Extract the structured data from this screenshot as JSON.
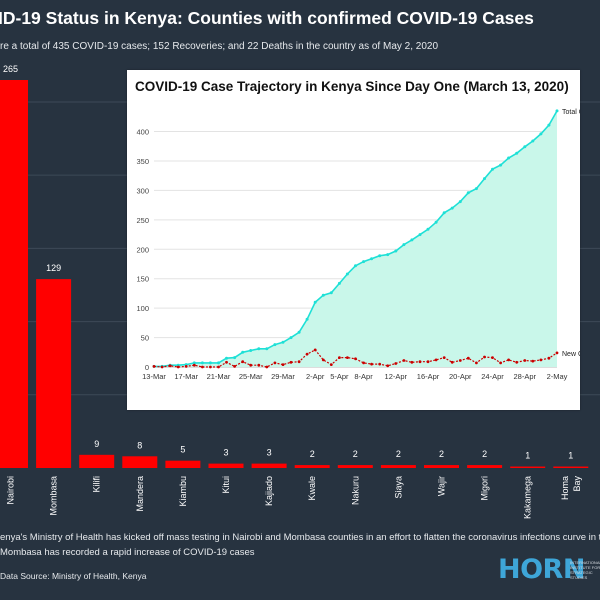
{
  "header": {
    "title": "ID-19 Status in Kenya: Counties with confirmed COVID-19 Cases",
    "subtitle": "re a total of 435 COVID-19 cases; 152 Recoveries; and 22 Deaths in the country as of May 2, 2020"
  },
  "chart_data": [
    {
      "type": "bar",
      "title": "",
      "categories": [
        "Nairobi",
        "Mombasa",
        "Kilifi",
        "Mandera",
        "Kiambu",
        "Kitui",
        "Kajiado",
        "Kwale",
        "Nakuru",
        "Siaya",
        "Wajir",
        "Migori",
        "Kakamega",
        "Homa Bay"
      ],
      "values": [
        265,
        129,
        9,
        8,
        5,
        3,
        3,
        2,
        2,
        2,
        2,
        2,
        1,
        1
      ],
      "value_labels": [
        "265",
        "129",
        "9",
        "8",
        "5",
        "3",
        "3",
        "2",
        "2",
        "2",
        "2",
        "2",
        "1",
        "1"
      ],
      "bar_color": "#ff0000",
      "grid": true
    },
    {
      "type": "line",
      "title": "COVID-19 Case Trajectory in Kenya Since Day One (March 13, 2020)",
      "x_start": "13-Mar",
      "x_tick_labels": [
        "13-Mar",
        "17-Mar",
        "21-Mar",
        "25-Mar",
        "29-Mar",
        "2-Apr",
        "5-Apr",
        "8-Apr",
        "12-Apr",
        "16-Apr",
        "20-Apr",
        "24-Apr",
        "28-Apr",
        "2-May"
      ],
      "y_tick_labels": [
        "0",
        "50",
        "100",
        "150",
        "200",
        "250",
        "300",
        "350",
        "400"
      ],
      "ylim": [
        0,
        440
      ],
      "series": [
        {
          "name": "Total Cases",
          "color": "#1ee0d6",
          "fill": "#c9f7ea",
          "values": [
            1,
            1,
            3,
            3,
            4,
            7,
            7,
            7,
            7,
            15,
            16,
            25,
            28,
            31,
            31,
            38,
            42,
            50,
            59,
            81,
            110,
            122,
            126,
            142,
            158,
            172,
            179,
            184,
            189,
            191,
            197,
            208,
            216,
            225,
            234,
            246,
            262,
            270,
            281,
            296,
            303,
            320,
            336,
            343,
            355,
            363,
            374,
            384,
            396,
            411,
            435
          ]
        },
        {
          "name": "New Cases",
          "color": "#cc0000",
          "values": [
            1,
            0,
            2,
            0,
            1,
            3,
            0,
            0,
            0,
            8,
            1,
            9,
            3,
            3,
            0,
            7,
            4,
            8,
            9,
            22,
            29,
            12,
            4,
            16,
            16,
            14,
            7,
            5,
            5,
            2,
            6,
            11,
            8,
            9,
            9,
            12,
            16,
            8,
            11,
            15,
            7,
            17,
            16,
            7,
            12,
            8,
            11,
            10,
            12,
            15,
            24
          ]
        }
      ]
    }
  ],
  "footnote": {
    "line1": "enya's Ministry of Health has kicked off mass testing in Nairobi and Mombasa counties in an effort to flatten the coronavirus infections curve in the country. Othe",
    "line2": "Mombasa has recorded a rapid increase of COVID-19 cases"
  },
  "source": "Data Source: Ministry of Health, Kenya",
  "logo": {
    "text": "HORN",
    "subtext": "INTERNATIONAL\nINSTITUTE FOR\nSTRATEGIC\nSTUDIES"
  }
}
